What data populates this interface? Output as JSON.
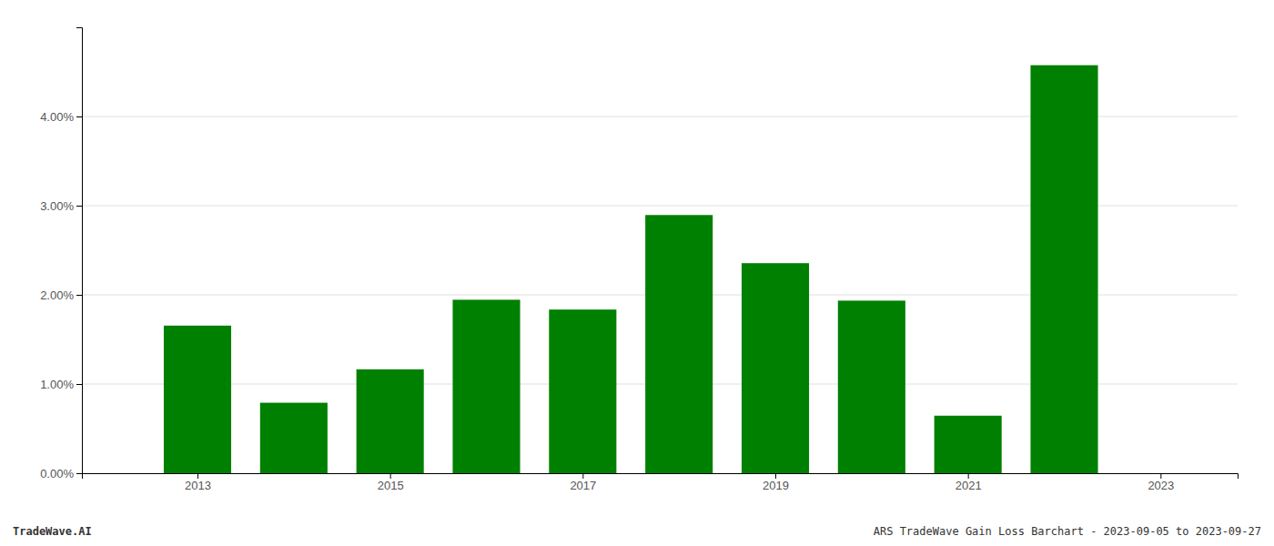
{
  "chart_data": {
    "type": "bar",
    "x": [
      2013,
      2014,
      2015,
      2016,
      2017,
      2018,
      2019,
      2020,
      2021,
      2022
    ],
    "values": [
      0.01655,
      0.0079,
      0.01165,
      0.01945,
      0.01835,
      0.02895,
      0.02355,
      0.01935,
      0.00645,
      0.04575
    ],
    "color": "#008000",
    "xlim": [
      2011.8,
      2023.8
    ],
    "xticks": [
      2013,
      2015,
      2017,
      2019,
      2021,
      2023
    ],
    "ylim": [
      0,
      0.05
    ],
    "yticks": [
      {
        "value": 0.0,
        "label": "0.00%"
      },
      {
        "value": 0.01,
        "label": "1.00%"
      },
      {
        "value": 0.02,
        "label": "2.00%"
      },
      {
        "value": 0.03,
        "label": "3.00%"
      },
      {
        "value": 0.04,
        "label": "4.00%"
      }
    ],
    "grid": "y",
    "annotations": [
      "TradeWave.AI",
      "ARS TradeWave Gain Loss Barchart - 2023-09-05 to 2023-09-27"
    ]
  }
}
